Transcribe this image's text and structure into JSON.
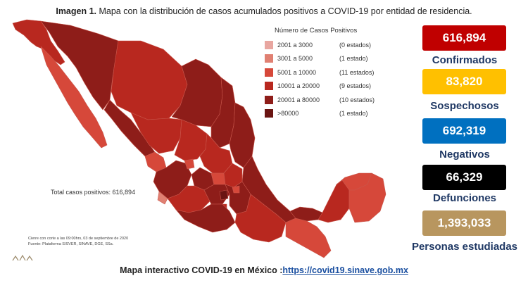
{
  "title": {
    "bold": "Imagen 1.",
    "text": " Mapa con la distribución de casos acumulados positivos a COVID-19 por entidad de residencia."
  },
  "legend": {
    "title": "Número de Casos Positivos",
    "items": [
      {
        "range": "2001 a 3000",
        "count": "(0 estados)",
        "color": "#e8a6a0"
      },
      {
        "range": "3001 a 5000",
        "count": "(1 estado)",
        "color": "#e08072"
      },
      {
        "range": "5001 a 10000",
        "count": "(11 estados)",
        "color": "#d6483a"
      },
      {
        "range": "10001 a 20000",
        "count": "(9 estados)",
        "color": "#b8281f"
      },
      {
        "range": "20001 a 80000",
        "count": "(10 estados)",
        "color": "#8e1d19"
      },
      {
        "range": ">80000",
        "count": "(1 estado)",
        "color": "#6a1512"
      }
    ]
  },
  "total_label": "Total casos positivos: 616,894",
  "notes": {
    "line1": "Cierre con corte a las 09:00hrs, 03 de septiembre de 2020",
    "line2": "Fuente: Plataforma SISVER, SINAVE, DGE, SSa."
  },
  "stats": [
    {
      "value": "616,894",
      "label": "Confirmados",
      "color": "#c00000",
      "text_color": "#ffffff"
    },
    {
      "value": "83,820",
      "label": "Sospechosos",
      "color": "#ffc000",
      "text_color": "#ffffff"
    },
    {
      "value": "692,319",
      "label": "Negativos",
      "color": "#0070c0",
      "text_color": "#ffffff"
    },
    {
      "value": "66,329",
      "label": "Defunciones",
      "color": "#000000",
      "text_color": "#ffffff"
    },
    {
      "value": "1,393,033",
      "label": "Personas estudiadas",
      "color": "#b8965f",
      "text_color": "#ffffff"
    }
  ],
  "footer": {
    "text": "Mapa interactivo COVID-19 en México :",
    "link": "https://covid19.sinave.gob.mx"
  }
}
